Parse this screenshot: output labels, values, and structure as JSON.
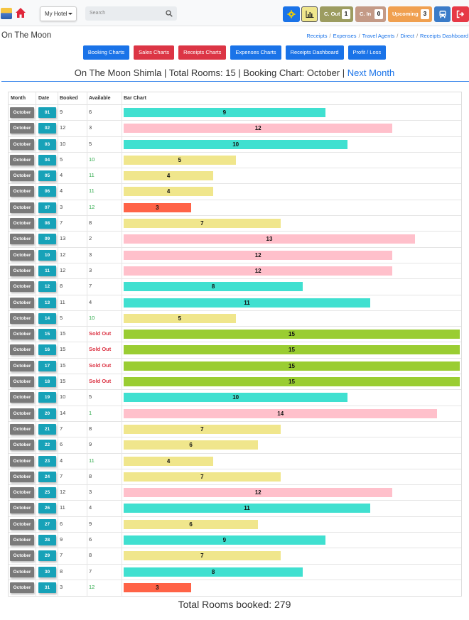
{
  "topbar": {
    "hotel_select": "My Hotel",
    "search_placeholder": "Search",
    "cout_label": "C. Out",
    "cout_count": "1",
    "cin_label": "C. In",
    "cin_count": "0",
    "upcoming_label": "Upcoming",
    "upcoming_count": "3"
  },
  "header": {
    "hotel_name": "On The Moon",
    "breadcrumbs": [
      "Receipts",
      "Expenses",
      "Travel Agents",
      "Direct",
      "Receipts Dashboard"
    ]
  },
  "nav_buttons": [
    {
      "label": "Booking Charts",
      "color": "blue"
    },
    {
      "label": "Sales Charts",
      "color": "red"
    },
    {
      "label": "Receipts Charts",
      "color": "red"
    },
    {
      "label": "Expenses Charts",
      "color": "blue"
    },
    {
      "label": "Receipts Dashboard",
      "color": "blue"
    },
    {
      "label": "Profit / Loss",
      "color": "blue"
    }
  ],
  "subtitle": {
    "text": "On The Moon Shimla | Total Rooms: 15 | Booking Chart: October | ",
    "link": "Next Month"
  },
  "table": {
    "headers": [
      "Month",
      "Date",
      "Booked",
      "Available",
      "Bar Chart"
    ]
  },
  "colors": {
    "low": "#f0e68c",
    "very_low": "#ff6347",
    "mid": "#40e0d0",
    "high": "#ffc0cb",
    "full": "#9acd32"
  },
  "chart_data": {
    "type": "bar",
    "month": "October",
    "total_rooms": 15,
    "rows": [
      {
        "date": "01",
        "booked": 9,
        "available": "6"
      },
      {
        "date": "02",
        "booked": 12,
        "available": "3"
      },
      {
        "date": "03",
        "booked": 10,
        "available": "5"
      },
      {
        "date": "04",
        "booked": 5,
        "available": "10"
      },
      {
        "date": "05",
        "booked": 4,
        "available": "11"
      },
      {
        "date": "06",
        "booked": 4,
        "available": "11"
      },
      {
        "date": "07",
        "booked": 3,
        "available": "12"
      },
      {
        "date": "08",
        "booked": 7,
        "available": "8"
      },
      {
        "date": "09",
        "booked": 13,
        "available": "2"
      },
      {
        "date": "10",
        "booked": 12,
        "available": "3"
      },
      {
        "date": "11",
        "booked": 12,
        "available": "3"
      },
      {
        "date": "12",
        "booked": 8,
        "available": "7"
      },
      {
        "date": "13",
        "booked": 11,
        "available": "4"
      },
      {
        "date": "14",
        "booked": 5,
        "available": "10"
      },
      {
        "date": "15",
        "booked": 15,
        "available": "Sold Out"
      },
      {
        "date": "16",
        "booked": 15,
        "available": "Sold Out"
      },
      {
        "date": "17",
        "booked": 15,
        "available": "Sold Out"
      },
      {
        "date": "18",
        "booked": 15,
        "available": "Sold Out"
      },
      {
        "date": "19",
        "booked": 10,
        "available": "5"
      },
      {
        "date": "20",
        "booked": 14,
        "available": "1"
      },
      {
        "date": "21",
        "booked": 7,
        "available": "8"
      },
      {
        "date": "22",
        "booked": 6,
        "available": "9"
      },
      {
        "date": "23",
        "booked": 4,
        "available": "11"
      },
      {
        "date": "24",
        "booked": 7,
        "available": "8"
      },
      {
        "date": "25",
        "booked": 12,
        "available": "3"
      },
      {
        "date": "26",
        "booked": 11,
        "available": "4"
      },
      {
        "date": "27",
        "booked": 6,
        "available": "9"
      },
      {
        "date": "28",
        "booked": 9,
        "available": "6"
      },
      {
        "date": "29",
        "booked": 7,
        "available": "8"
      },
      {
        "date": "30",
        "booked": 8,
        "available": "7"
      },
      {
        "date": "31",
        "booked": 3,
        "available": "12"
      }
    ]
  },
  "footer": {
    "total_text": "Total Rooms booked: 279"
  }
}
